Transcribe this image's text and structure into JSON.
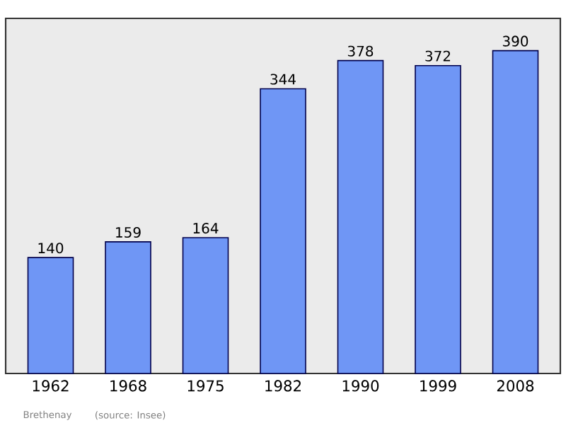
{
  "chart_data": {
    "type": "bar",
    "categories": [
      "1962",
      "1968",
      "1975",
      "1982",
      "1990",
      "1999",
      "2008"
    ],
    "values": [
      140,
      159,
      164,
      344,
      378,
      372,
      390
    ],
    "color": "#6f96f5",
    "data_labels": true,
    "annotations": [
      "Brethenay",
      "(source: Insee)"
    ]
  }
}
